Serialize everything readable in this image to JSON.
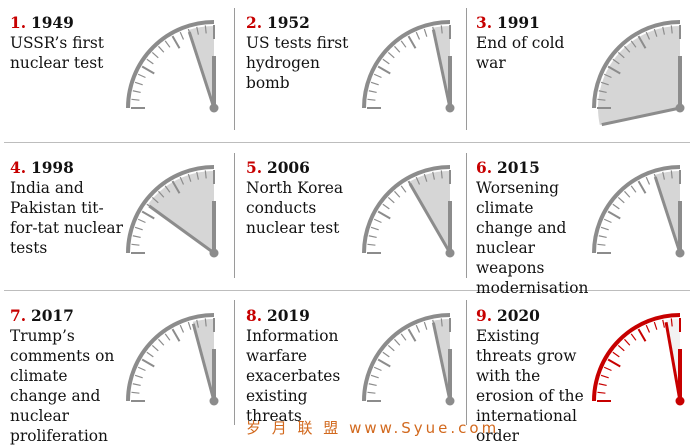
{
  "events": [
    {
      "num": "1.",
      "year": "1949",
      "desc": "USSR’s first nuclear test",
      "minutes": 3
    },
    {
      "num": "2.",
      "year": "1952",
      "desc": "US tests first hydrogen bomb",
      "minutes": 2
    },
    {
      "num": "3.",
      "year": "1991",
      "desc": "End of cold war",
      "minutes": 17
    },
    {
      "num": "4.",
      "year": "1998",
      "desc": "India and Pakistan tit-for-tat nuclear tests",
      "minutes": 9
    },
    {
      "num": "5.",
      "year": "2006",
      "desc": "North Korea conducts nuclear test",
      "minutes": 5
    },
    {
      "num": "6.",
      "year": "2015",
      "desc": "Worsening climate change and nuclear weapons modernisation",
      "minutes": 3
    },
    {
      "num": "7.",
      "year": "2017",
      "desc": "Trump’s comments on climate change and nuclear proliferation",
      "minutes": 2.5
    },
    {
      "num": "8.",
      "year": "2019",
      "desc": "Information warfare exacerbates existing threats",
      "minutes": 2
    },
    {
      "num": "9.",
      "year": "2020",
      "desc": "Existing threats grow with the erosion of the international order",
      "minutes": 1.67
    }
  ],
  "colors": {
    "accent": "#c70000",
    "dial": "#8c8c8c",
    "fill": "#d6d6d6",
    "text": "#121212"
  },
  "watermark": "岁 月 联 盟   www.Syue.com"
}
